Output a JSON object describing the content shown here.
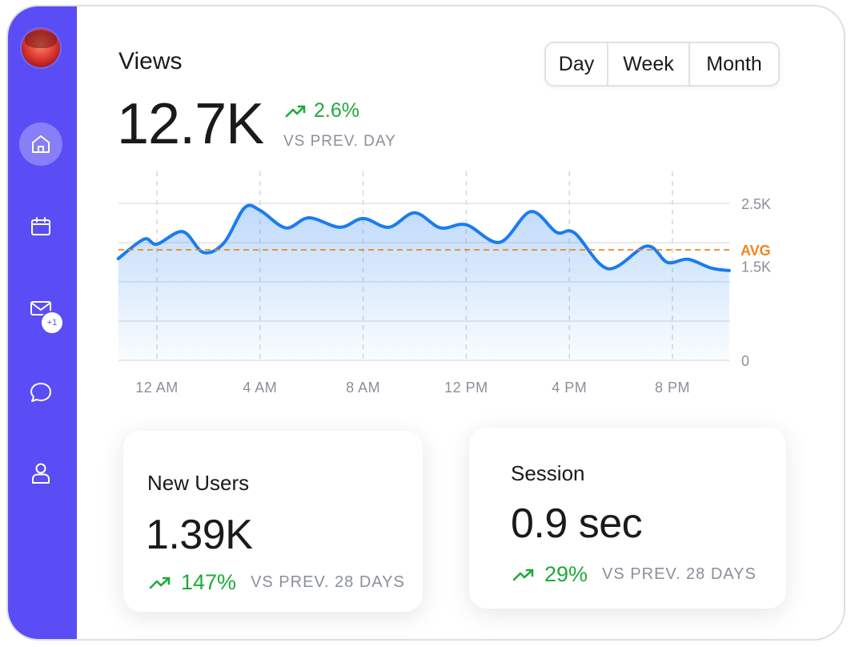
{
  "sidebar": {
    "badge": "+1",
    "items": [
      {
        "name": "home",
        "active": true
      },
      {
        "name": "calendar",
        "active": false
      },
      {
        "name": "mail",
        "active": false
      },
      {
        "name": "chat",
        "active": false
      },
      {
        "name": "profile",
        "active": false
      }
    ]
  },
  "views": {
    "title": "Views",
    "value": "12.7K",
    "change": "2.6%",
    "compare": "VS PREV. DAY"
  },
  "range_tabs": [
    {
      "label": "Day",
      "selected": true
    },
    {
      "label": "Week",
      "selected": false
    },
    {
      "label": "Month",
      "selected": false
    }
  ],
  "colors": {
    "accent": "#5a4df5",
    "line": "#1a7cf0",
    "avg": "#f0861e",
    "positive": "#1faa3a"
  },
  "chart_data": {
    "type": "area",
    "x_ticks": [
      "12 AM",
      "4 AM",
      "8 AM",
      "12 PM",
      "4 PM",
      "8 PM"
    ],
    "y_ticks": [
      {
        "label": "2.5K",
        "value": 2500
      },
      {
        "label": "1.5K",
        "value": 1500
      },
      {
        "label": "0",
        "value": 0
      }
    ],
    "ylim": [
      0,
      2500
    ],
    "avg": {
      "label": "AVG",
      "value": 1760
    },
    "x_hours": [
      -1.5,
      -0.5,
      0,
      1,
      1.8,
      2.6,
      3.4,
      4,
      5,
      5.9,
      7.1,
      8,
      9,
      10,
      11,
      12,
      13.3,
      14.5,
      15.5,
      16.2,
      17.5,
      19,
      19.8,
      20.6,
      21.5,
      22.2
    ],
    "values": [
      1620,
      1930,
      1850,
      2050,
      1720,
      1870,
      2430,
      2390,
      2110,
      2270,
      2120,
      2260,
      2120,
      2350,
      2110,
      2160,
      1880,
      2370,
      2040,
      2030,
      1460,
      1820,
      1560,
      1610,
      1470,
      1430
    ]
  },
  "cards": [
    {
      "label": "New Users",
      "value": "1.39K",
      "change": "147%",
      "compare": "VS PREV. 28 DAYS"
    },
    {
      "label": "Session",
      "value": "0.9 sec",
      "change": "29%",
      "compare": "VS PREV. 28 DAYS"
    }
  ]
}
